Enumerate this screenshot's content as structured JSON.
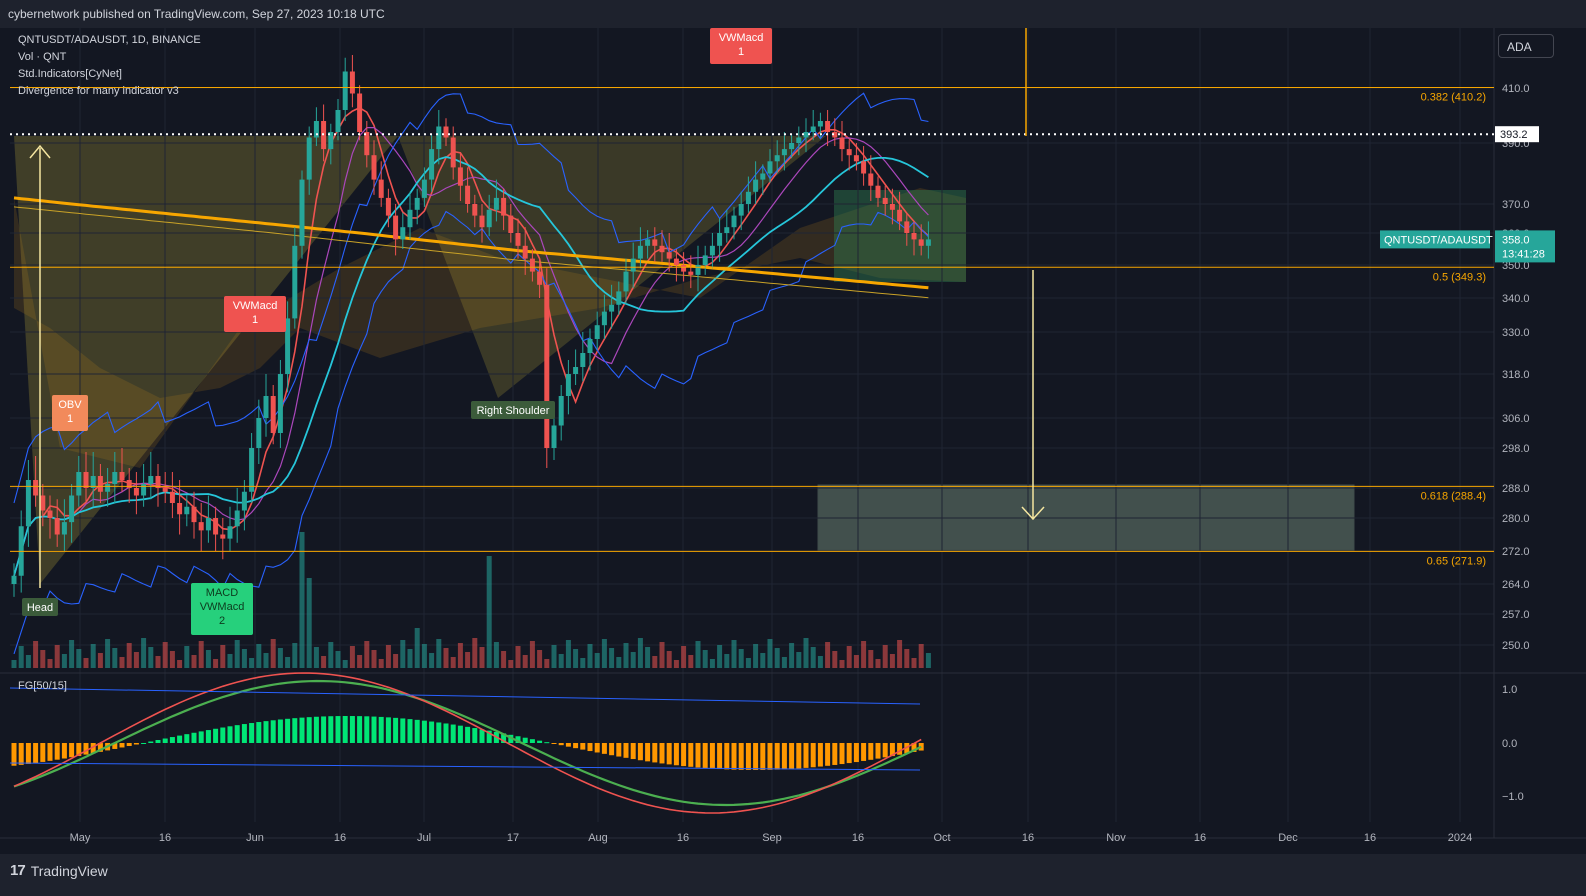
{
  "header": {
    "published_by": "cybernetwork published on TradingView.com, Sep 27, 2023 10:18 UTC"
  },
  "footer": {
    "brand_logo": "17",
    "brand_name": "TradingView"
  },
  "legend": {
    "symbol": "QNTUSDT/ADAUSDT, 1D, BINANCE",
    "vol": "Vol · QNT",
    "std": "Std.Indicators[CyNet]",
    "divergence": "Divergence for many indicator v3",
    "oscillator": "FG[50/15]"
  },
  "currency_button": "ADA",
  "colors": {
    "background": "#131722",
    "up_candle": "#26a69a",
    "down_candle": "#ef5350",
    "fib_line": "#f7a600",
    "bollinger": "#2962ff",
    "ema_teal": "#26c6da",
    "osc_bull": "#00e676",
    "osc_bear": "#ff9800"
  },
  "chart_data": {
    "type": "candlestick",
    "symbol": "QNTUSDT/ADAUSDT",
    "timeframe": "1D",
    "exchange": "BINANCE",
    "x_ticks": [
      "May",
      "16",
      "Jun",
      "16",
      "Jul",
      "17",
      "Aug",
      "16",
      "Sep",
      "16",
      "Oct",
      "16",
      "Nov",
      "16",
      "Dec",
      "16",
      "2024"
    ],
    "y_ticks": [
      "410.0",
      "390.0",
      "370.0",
      "360.0",
      "350.0",
      "340.0",
      "330.0",
      "318.0",
      "306.0",
      "298.0",
      "288.0",
      "280.0",
      "272.0",
      "264.0",
      "257.0",
      "250.0"
    ],
    "osc_ticks": [
      "1.0",
      "0.0",
      "−1.0"
    ],
    "last_price": "358.0",
    "countdown": "13:41:28",
    "price_tag": "QNTUSDT/ADAUSDT",
    "level_tag": "393.2",
    "price_closes": [
      266,
      278,
      290,
      286,
      282,
      280,
      276,
      279,
      286,
      292,
      288,
      291,
      287,
      289,
      292,
      290,
      288,
      286,
      289,
      291,
      288,
      287,
      284,
      281,
      283,
      279,
      277,
      280,
      276,
      275,
      278,
      282,
      287,
      298,
      306,
      312,
      302,
      318,
      334,
      356,
      378,
      392,
      398,
      388,
      394,
      402,
      416,
      408,
      394,
      386,
      378,
      372,
      366,
      358,
      362,
      368,
      372,
      378,
      388,
      396,
      392,
      382,
      376,
      370,
      366,
      362,
      368,
      372,
      366,
      360,
      356,
      352,
      348,
      344,
      298,
      304,
      312,
      318,
      320,
      324,
      328,
      332,
      336,
      338,
      342,
      348,
      352,
      356,
      358,
      356,
      354,
      352,
      350,
      348,
      347,
      350,
      353,
      356,
      360,
      362,
      366,
      370,
      374,
      378,
      380,
      384,
      386,
      388,
      390,
      392,
      394,
      396,
      398,
      394,
      392,
      388,
      386,
      384,
      380,
      376,
      372,
      370,
      368,
      364,
      360,
      358,
      356,
      358
    ],
    "fib_levels": [
      {
        "label": "0.382 (410.2)",
        "value": 410.2
      },
      {
        "label": "0.5 (349.3)",
        "value": 349.3
      },
      {
        "label": "0.618 (288.4)",
        "value": 288.4
      },
      {
        "label": "0.65 (271.9)",
        "value": 271.9
      }
    ],
    "annotations": [
      {
        "text": "VWMacd\n1",
        "kind": "bear"
      },
      {
        "text": "VWMacd\n1",
        "kind": "bear"
      },
      {
        "text": "OBV\n1",
        "kind": "bear"
      },
      {
        "text": "MACD\nVWMacd\n2",
        "kind": "bull"
      },
      {
        "text": "Head",
        "kind": "label"
      },
      {
        "text": "Right Shoulder",
        "kind": "label"
      }
    ]
  }
}
